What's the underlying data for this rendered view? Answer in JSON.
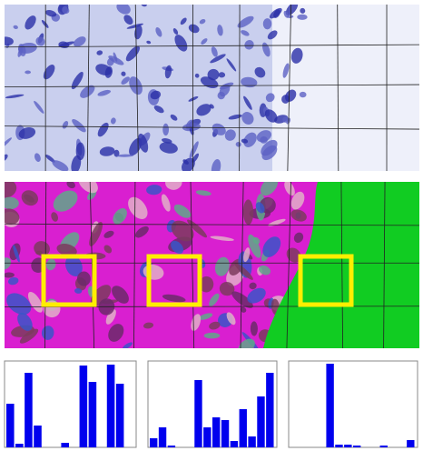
{
  "chart_data": [
    {
      "type": "bar",
      "color": "#0000ee",
      "ylim": [
        0,
        95
      ],
      "values": [
        48,
        4,
        82,
        24,
        0,
        0,
        5,
        0,
        90,
        72,
        0,
        91,
        70,
        0
      ]
    },
    {
      "type": "bar",
      "color": "#0000ee",
      "ylim": [
        0,
        95
      ],
      "values": [
        10,
        22,
        2,
        0,
        0,
        74,
        22,
        33,
        30,
        7,
        42,
        12,
        56,
        82
      ]
    },
    {
      "type": "bar",
      "color": "#0000ee",
      "ylim": [
        0,
        95
      ],
      "values": [
        0,
        0,
        0,
        0,
        92,
        3,
        3,
        2,
        0,
        0,
        2,
        0,
        0,
        8
      ]
    }
  ]
}
